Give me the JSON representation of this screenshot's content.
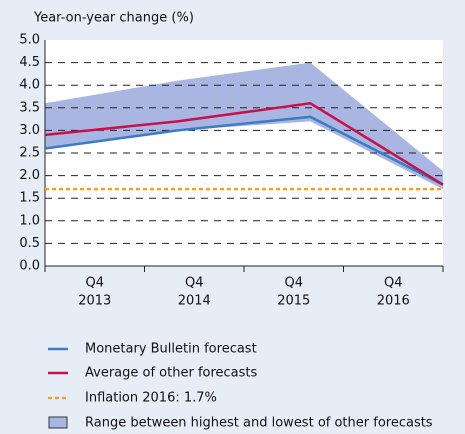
{
  "chart_data": {
    "type": "line",
    "ylabel": "Year-on-year change (%)",
    "categories": [
      [
        "Q4",
        "2013"
      ],
      [
        "Q4",
        "2014"
      ],
      [
        "Q4",
        "2015"
      ],
      [
        "Q4",
        "2016"
      ]
    ],
    "series": [
      {
        "name": "Monetary Bulletin forecast",
        "color": "#3a7cc6",
        "values": [
          2.6,
          3.0,
          3.3,
          1.8
        ]
      },
      {
        "name": "Average of other forecasts",
        "color": "#c8104a",
        "values": [
          2.9,
          3.2,
          3.6,
          1.8
        ]
      }
    ],
    "reference": {
      "name": "Inflation 2016: 1.7%",
      "color": "#f5a11c",
      "value": 1.7
    },
    "range": {
      "name": "Range between highest and lowest of other forecasts",
      "color": "#aab6e2",
      "high": [
        3.6,
        4.1,
        4.5,
        2.1
      ],
      "low": [
        2.6,
        3.0,
        3.2,
        1.7
      ]
    },
    "ylim": [
      0,
      5
    ],
    "yticks": [
      {
        "value": 0,
        "label": "0.0"
      },
      {
        "value": 0.5,
        "label": "0.5"
      },
      {
        "value": 1,
        "label": "1.0"
      },
      {
        "value": 1.5,
        "label": "1.5"
      },
      {
        "value": 2,
        "label": "2.0"
      },
      {
        "value": 2.5,
        "label": "2.5"
      },
      {
        "value": 3,
        "label": "3.0"
      },
      {
        "value": 3.5,
        "label": "3.5"
      },
      {
        "value": 4,
        "label": "4.0"
      },
      {
        "value": 4.5,
        "label": "4.5"
      },
      {
        "value": 5,
        "label": "5.0"
      }
    ],
    "grid": true
  }
}
